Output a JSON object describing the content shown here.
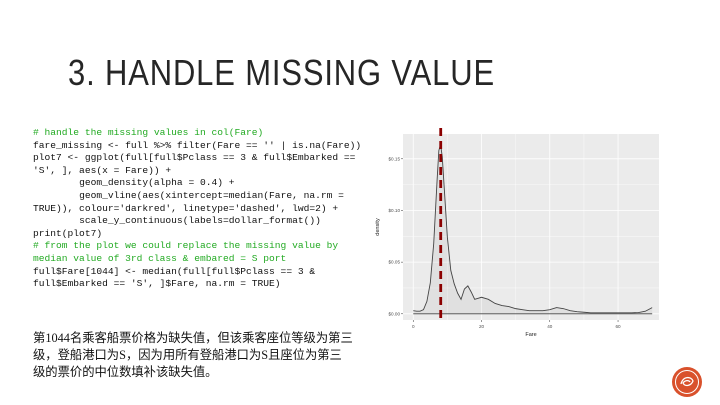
{
  "slide": {
    "title": "3. HANDLE MISSING VALUE",
    "code_lines": [
      {
        "text": "# handle the missing values in col(Fare)",
        "type": "comment"
      },
      {
        "text": "fare_missing <- full %>% filter(Fare == '' | is.na(Fare))",
        "type": "code"
      },
      {
        "text": "plot7 <- ggplot(full[full$Pclass == 3 & full$Embarked == 'S', ], aes(x = Fare)) +",
        "type": "code"
      },
      {
        "text": "        geom_density(alpha = 0.4) +",
        "type": "code"
      },
      {
        "text": "        geom_vline(aes(xintercept=median(Fare, na.rm = TRUE)), colour='darkred', linetype='dashed', lwd=2) +",
        "type": "code"
      },
      {
        "text": "        scale_y_continuous(labels=dollar_format())",
        "type": "code"
      },
      {
        "text": "print(plot7)",
        "type": "code"
      },
      {
        "text": "# from the plot we could replace the missing value by median value of 3rd class & embared = S port",
        "type": "comment"
      },
      {
        "text": "full$Fare[1044] <- median(full[full$Pclass == 3 & full$Embarked == 'S', ]$Fare, na.rm = TRUE)",
        "type": "code"
      }
    ],
    "note": {
      "part1": "第",
      "num": "1044",
      "part2": "名乘客船票价格为缺失值，但该乘客座位等级为第三级，登船港口为",
      "s1": "S",
      "part3": "，因为用所有登船港口为",
      "s2": "S",
      "part4": "且座位为第三级的票价的中位数填补该缺失值。"
    }
  },
  "chart_data": {
    "type": "area",
    "x": [
      0,
      1,
      2,
      3,
      4,
      5,
      6,
      7,
      7.5,
      8,
      8.5,
      9,
      10,
      11,
      12,
      13,
      14,
      15,
      16,
      17,
      18,
      19,
      20,
      22,
      24,
      26,
      28,
      30,
      32,
      34,
      36,
      38,
      40,
      42,
      44,
      46,
      48,
      50,
      52,
      54,
      56,
      58,
      60,
      62,
      64,
      66,
      68,
      70
    ],
    "y": [
      0.003,
      0.0025,
      0.0025,
      0.004,
      0.012,
      0.03,
      0.068,
      0.13,
      0.158,
      0.164,
      0.152,
      0.126,
      0.074,
      0.042,
      0.029,
      0.02,
      0.014,
      0.024,
      0.027,
      0.021,
      0.014,
      0.015,
      0.016,
      0.014,
      0.01,
      0.008,
      0.007,
      0.005,
      0.004,
      0.003,
      0.003,
      0.003,
      0.004,
      0.006,
      0.005,
      0.003,
      0.002,
      0.0015,
      0.001,
      0.001,
      0.001,
      0.001,
      0.001,
      0.001,
      0.001,
      0.0012,
      0.0025,
      0.006
    ],
    "median": 8.05,
    "xlabel": "Fare",
    "ylabel": "density",
    "xticks": [
      0,
      20,
      40,
      60
    ],
    "yticks": [
      0.0,
      0.05,
      0.1,
      0.15
    ],
    "ytick_labels": [
      "$0.00",
      "$0.05",
      "$0.10",
      "$0.15"
    ],
    "xlim": [
      -3,
      72
    ],
    "ylim": [
      -0.006,
      0.174
    ],
    "grid": false,
    "colors": {
      "panel": "#ebebeb",
      "grid": "#ffffff",
      "line": "#444444",
      "vline": "#8b0000",
      "tick_text": "#4d4d4d"
    }
  },
  "logo": {
    "colors": {
      "ring": "#d9512c",
      "inner": "#ffffff"
    },
    "icon": "decorative-seal-icon"
  }
}
